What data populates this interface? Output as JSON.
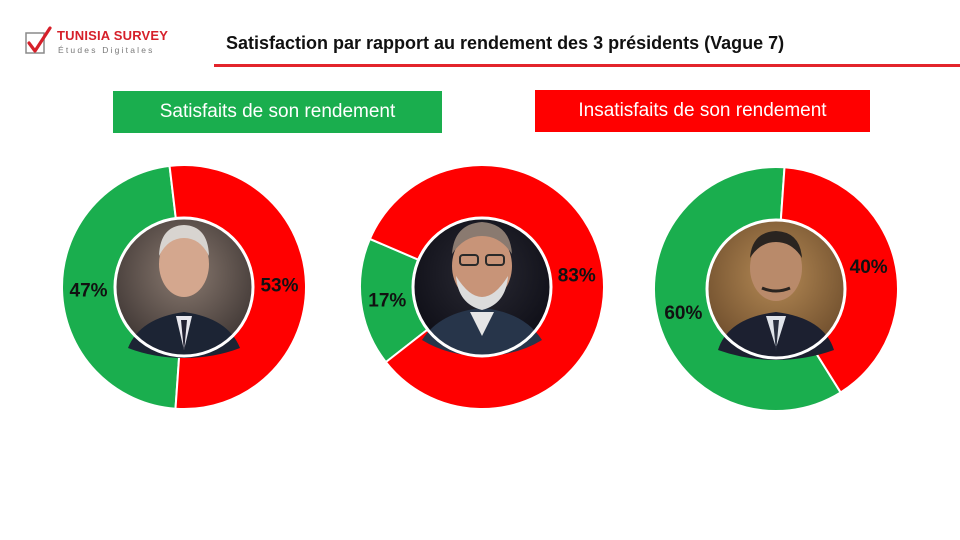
{
  "logo": {
    "name": "TUNISIA SURVEY",
    "tagline": "Études Digitales"
  },
  "title": "Satisfaction par rapport au rendement  des 3 présidents (Vague 7)",
  "legend": {
    "satisfied": "Satisfaits de son rendement",
    "unsatisfied": "Insatisfaits de son rendement"
  },
  "colors": {
    "satisfied": "#1aae4e",
    "unsatisfied": "#ff0000",
    "accent": "#e3242b"
  },
  "chart_data": [
    {
      "type": "pie",
      "labels": [
        "Satisfaits de son rendement",
        "Insatisfaits de son rendement"
      ],
      "values": [
        47,
        53
      ],
      "value_labels": [
        "47%",
        "53%"
      ]
    },
    {
      "type": "pie",
      "labels": [
        "Satisfaits de son rendement",
        "Insatisfaits de son rendement"
      ],
      "values": [
        17,
        83
      ],
      "value_labels": [
        "17%",
        "83%"
      ]
    },
    {
      "type": "pie",
      "labels": [
        "Satisfaits de son rendement",
        "Insatisfaits de son rendement"
      ],
      "values": [
        60,
        40
      ],
      "value_labels": [
        "60%",
        "40%"
      ]
    }
  ]
}
